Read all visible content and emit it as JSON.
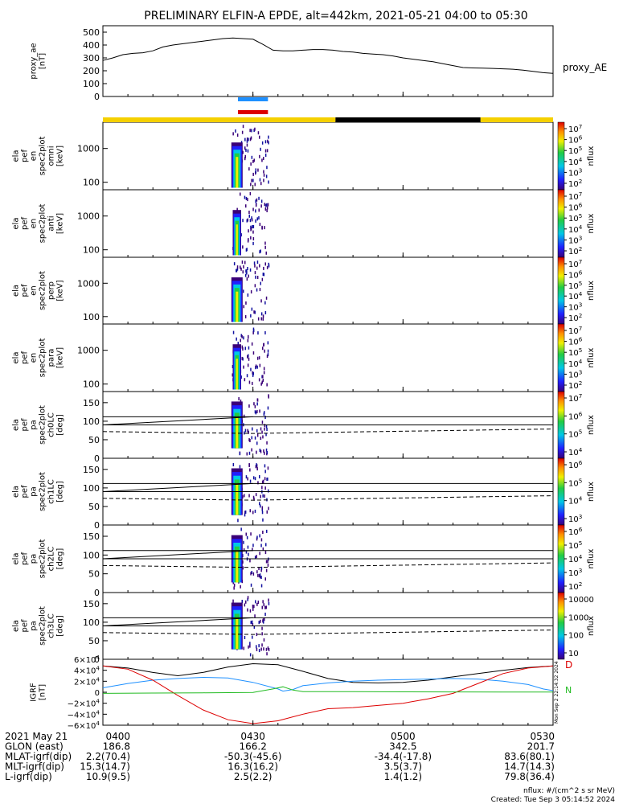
{
  "title": "PRELIMINARY ELFIN-A EPDE, alt=442km, 2021-05-21 04:00 to 05:30",
  "created": "Created: Tue Sep  3 05:14:52 2024",
  "nflux_units": "nflux: #/(cm^2 s sr MeV)",
  "side_stamp": "Mon Sep  2 22:14:32 2024",
  "colors": {
    "gold": "#f5d000",
    "black": "#000000",
    "blue": "#1e90ff",
    "red": "#dd0000",
    "green": "#22bb22",
    "ae_line": "#000000"
  },
  "bars": {
    "blue_bar": {
      "start_min": 27,
      "end_min": 33
    },
    "red_bar": {
      "start_min": 27,
      "end_min": 33
    },
    "mode_bar": [
      {
        "start_min": 0,
        "end_min": 46.5,
        "color": "gold"
      },
      {
        "start_min": 46.5,
        "end_min": 75.5,
        "color": "black"
      },
      {
        "start_min": 75.5,
        "end_min": 90,
        "color": "gold"
      }
    ]
  },
  "chart_data": [
    {
      "type": "line",
      "name": "proxy_ae",
      "ylabel_lines": [
        "proxy_ae",
        "[nT]"
      ],
      "legend": "proxy_AE",
      "yticks": [
        "500",
        "400",
        "300",
        "200",
        "100",
        "0"
      ],
      "ylim": [
        0,
        550
      ],
      "x_min": [
        0,
        2,
        4,
        6,
        8,
        10,
        12,
        14,
        16,
        18,
        20,
        22,
        24,
        26,
        28,
        30,
        32,
        34,
        36,
        38,
        40,
        42,
        44,
        46,
        48,
        50,
        52,
        54,
        56,
        58,
        60,
        62,
        64,
        66,
        68,
        70,
        72,
        74,
        76,
        78,
        80,
        82,
        84,
        86,
        88,
        90
      ],
      "y": [
        280,
        300,
        325,
        335,
        340,
        355,
        385,
        400,
        410,
        420,
        430,
        440,
        450,
        455,
        450,
        445,
        405,
        360,
        355,
        355,
        360,
        365,
        365,
        360,
        350,
        345,
        335,
        330,
        325,
        315,
        300,
        290,
        280,
        270,
        255,
        240,
        225,
        222,
        220,
        218,
        215,
        212,
        205,
        195,
        185,
        180
      ]
    },
    {
      "type": "heatmap",
      "name": "omni",
      "ylabel_lines": [
        "ela",
        "pef",
        "en",
        "spec2plot",
        "omni",
        "[keV]"
      ],
      "yticks": [
        "1000",
        "100"
      ],
      "colorbar": {
        "label": "nflux",
        "ticks": [
          "10^7",
          "10^6",
          "10^5",
          "10^4",
          "10^3",
          "10^2"
        ]
      }
    },
    {
      "type": "heatmap",
      "name": "anti",
      "ylabel_lines": [
        "ela",
        "pef",
        "en",
        "spec2plot",
        "anti",
        "[keV]"
      ],
      "yticks": [
        "1000",
        "100"
      ],
      "colorbar": {
        "label": "nflux",
        "ticks": [
          "10^7",
          "10^6",
          "10^5",
          "10^4",
          "10^3",
          "10^2"
        ]
      }
    },
    {
      "type": "heatmap",
      "name": "perp",
      "ylabel_lines": [
        "ela",
        "pef",
        "en",
        "spec2plot",
        "perp",
        "[keV]"
      ],
      "yticks": [
        "1000",
        "100"
      ],
      "colorbar": {
        "label": "nflux",
        "ticks": [
          "10^7",
          "10^6",
          "10^5",
          "10^4",
          "10^3",
          "10^2"
        ]
      }
    },
    {
      "type": "heatmap",
      "name": "para",
      "ylabel_lines": [
        "ela",
        "pef",
        "en",
        "spec2plot",
        "para",
        "[keV]"
      ],
      "yticks": [
        "1000",
        "100"
      ],
      "colorbar": {
        "label": "nflux",
        "ticks": [
          "10^7",
          "10^6",
          "10^5",
          "10^4",
          "10^3",
          "10^2"
        ]
      }
    },
    {
      "type": "heatmap",
      "name": "ch0LC",
      "ylabel_lines": [
        "ela",
        "pef",
        "pa",
        "spec2plot",
        "ch0LC",
        "[deg]"
      ],
      "yticks": [
        "150",
        "100",
        "50",
        "0"
      ],
      "colorbar": {
        "label": "nflux",
        "ticks": [
          "10^7",
          "10^6",
          "10^5",
          "10^4"
        ]
      }
    },
    {
      "type": "heatmap",
      "name": "ch1LC",
      "ylabel_lines": [
        "ela",
        "pef",
        "pa",
        "spec2plot",
        "ch1LC",
        "[deg]"
      ],
      "yticks": [
        "150",
        "100",
        "50",
        "0"
      ],
      "colorbar": {
        "label": "nflux",
        "ticks": [
          "10^6",
          "10^5",
          "10^4",
          "10^3"
        ]
      }
    },
    {
      "type": "heatmap",
      "name": "ch2LC",
      "ylabel_lines": [
        "ela",
        "pef",
        "pa",
        "spec2plot",
        "ch2LC",
        "[deg]"
      ],
      "yticks": [
        "150",
        "100",
        "50",
        "0"
      ],
      "colorbar": {
        "label": "nflux",
        "ticks": [
          "10^6",
          "10^5",
          "10^4",
          "10^3",
          "10^2"
        ]
      }
    },
    {
      "type": "heatmap",
      "name": "ch3LC",
      "ylabel_lines": [
        "ela",
        "pef",
        "pa",
        "spec2plot",
        "ch3LC",
        "[deg]"
      ],
      "yticks": [
        "150",
        "100",
        "50",
        "0"
      ],
      "colorbar": {
        "label": "nflux",
        "ticks": [
          "10000",
          "1000",
          "100",
          "10"
        ]
      }
    },
    {
      "type": "line",
      "name": "igrf",
      "ylabel_lines": [
        "IGRF",
        "[nT]"
      ],
      "yticks": [
        "6×10^4",
        "4×10^4",
        "2×10^4",
        "0",
        "−2×10^4",
        "−4×10^4",
        "−6×10^4"
      ],
      "ylim": [
        -60000,
        60000
      ],
      "legend": [
        {
          "label": "D",
          "color": "red"
        },
        {
          "label": "N",
          "color": "green"
        }
      ],
      "series": [
        {
          "color": "black",
          "x_min": [
            0,
            5,
            10,
            15,
            20,
            25,
            30,
            35,
            40,
            45,
            50,
            55,
            60,
            65,
            70,
            75,
            80,
            85,
            90
          ],
          "y": [
            48000,
            44000,
            36000,
            30000,
            36000,
            46000,
            52000,
            50000,
            38000,
            25000,
            18000,
            17000,
            18000,
            22000,
            28000,
            34000,
            40000,
            45000,
            48000
          ]
        },
        {
          "color": "blue",
          "x_min": [
            0,
            5,
            10,
            15,
            20,
            25,
            30,
            35,
            36,
            38,
            40,
            45,
            50,
            55,
            60,
            65,
            70,
            75,
            80,
            85,
            88,
            90
          ],
          "y": [
            8000,
            16000,
            22000,
            25000,
            27000,
            26000,
            18000,
            6000,
            2000,
            5000,
            12000,
            17000,
            20000,
            22000,
            23000,
            24000,
            25000,
            24000,
            20000,
            14000,
            6000,
            3000
          ]
        },
        {
          "color": "red",
          "x_min": [
            0,
            5,
            10,
            15,
            20,
            25,
            30,
            35,
            40,
            45,
            50,
            55,
            60,
            65,
            70,
            75,
            80,
            85,
            90
          ],
          "y": [
            48000,
            42000,
            22000,
            -6000,
            -32000,
            -50000,
            -57000,
            -52000,
            -40000,
            -30000,
            -28000,
            -24000,
            -20000,
            -12000,
            -2000,
            16000,
            34000,
            44000,
            48000
          ]
        },
        {
          "color": "green",
          "x_min": [
            0,
            10,
            20,
            30,
            34,
            36,
            38,
            40,
            50,
            60,
            70,
            80,
            90
          ],
          "y": [
            -2000,
            -1500,
            -1000,
            -500,
            6000,
            10000,
            4000,
            1000,
            1000,
            800,
            600,
            500,
            400
          ]
        }
      ]
    }
  ],
  "x_ticks": [
    {
      "min": 0,
      "label": "0400"
    },
    {
      "min": 30,
      "label": "0430"
    },
    {
      "min": 60,
      "label": "0500"
    },
    {
      "min": 90,
      "label": "0530"
    }
  ],
  "bottom_table": {
    "rows": [
      {
        "label": "2021 May 21",
        "values": [
          "0400",
          "0430",
          "0500",
          "0530"
        ]
      },
      {
        "label": "GLON (east)",
        "values": [
          "186.8",
          "166.2",
          "342.5",
          "201.7"
        ]
      },
      {
        "label": "MLAT-igrf(dip)",
        "values": [
          "2.2(70.4)",
          "-50.3(-45.6)",
          "-34.4(-17.8)",
          "83.6(80.1)"
        ]
      },
      {
        "label": "MLT-igrf(dip)",
        "values": [
          "15.3(14.7)",
          "16.3(16.2)",
          "3.5(3.7)",
          "14.7(14.3)"
        ]
      },
      {
        "label": "L-igrf(dip)",
        "values": [
          "10.9(9.5)",
          "2.5(2.2)",
          "1.4(1.2)",
          "79.8(36.4)"
        ]
      }
    ]
  }
}
